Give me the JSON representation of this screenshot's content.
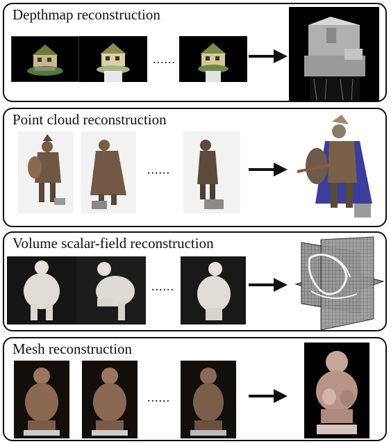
{
  "colors": {
    "border": "#111111",
    "arrow": "#111111",
    "dark_background": "#000000",
    "light_background": "#f2f2f2"
  },
  "panels": [
    {
      "title": "Depthmap reconstruction",
      "ellipsis": "......",
      "inputs": [
        "house-photo",
        "house-photo",
        "house-photo"
      ],
      "result": "depth-map"
    },
    {
      "title": "Point cloud reconstruction",
      "ellipsis": "......",
      "inputs": [
        "warrior-photo",
        "warrior-photo",
        "warrior-photo"
      ],
      "result": "point-cloud"
    },
    {
      "title": "Volume scalar-field reconstruction",
      "ellipsis": "......",
      "inputs": [
        "crouching-figure-photo",
        "crouching-figure-photo",
        "crouching-figure-photo"
      ],
      "result": "volume-slices"
    },
    {
      "title": "Mesh reconstruction",
      "ellipsis": "......",
      "inputs": [
        "statue-photo",
        "statue-photo",
        "statue-photo"
      ],
      "result": "mesh-render"
    }
  ]
}
